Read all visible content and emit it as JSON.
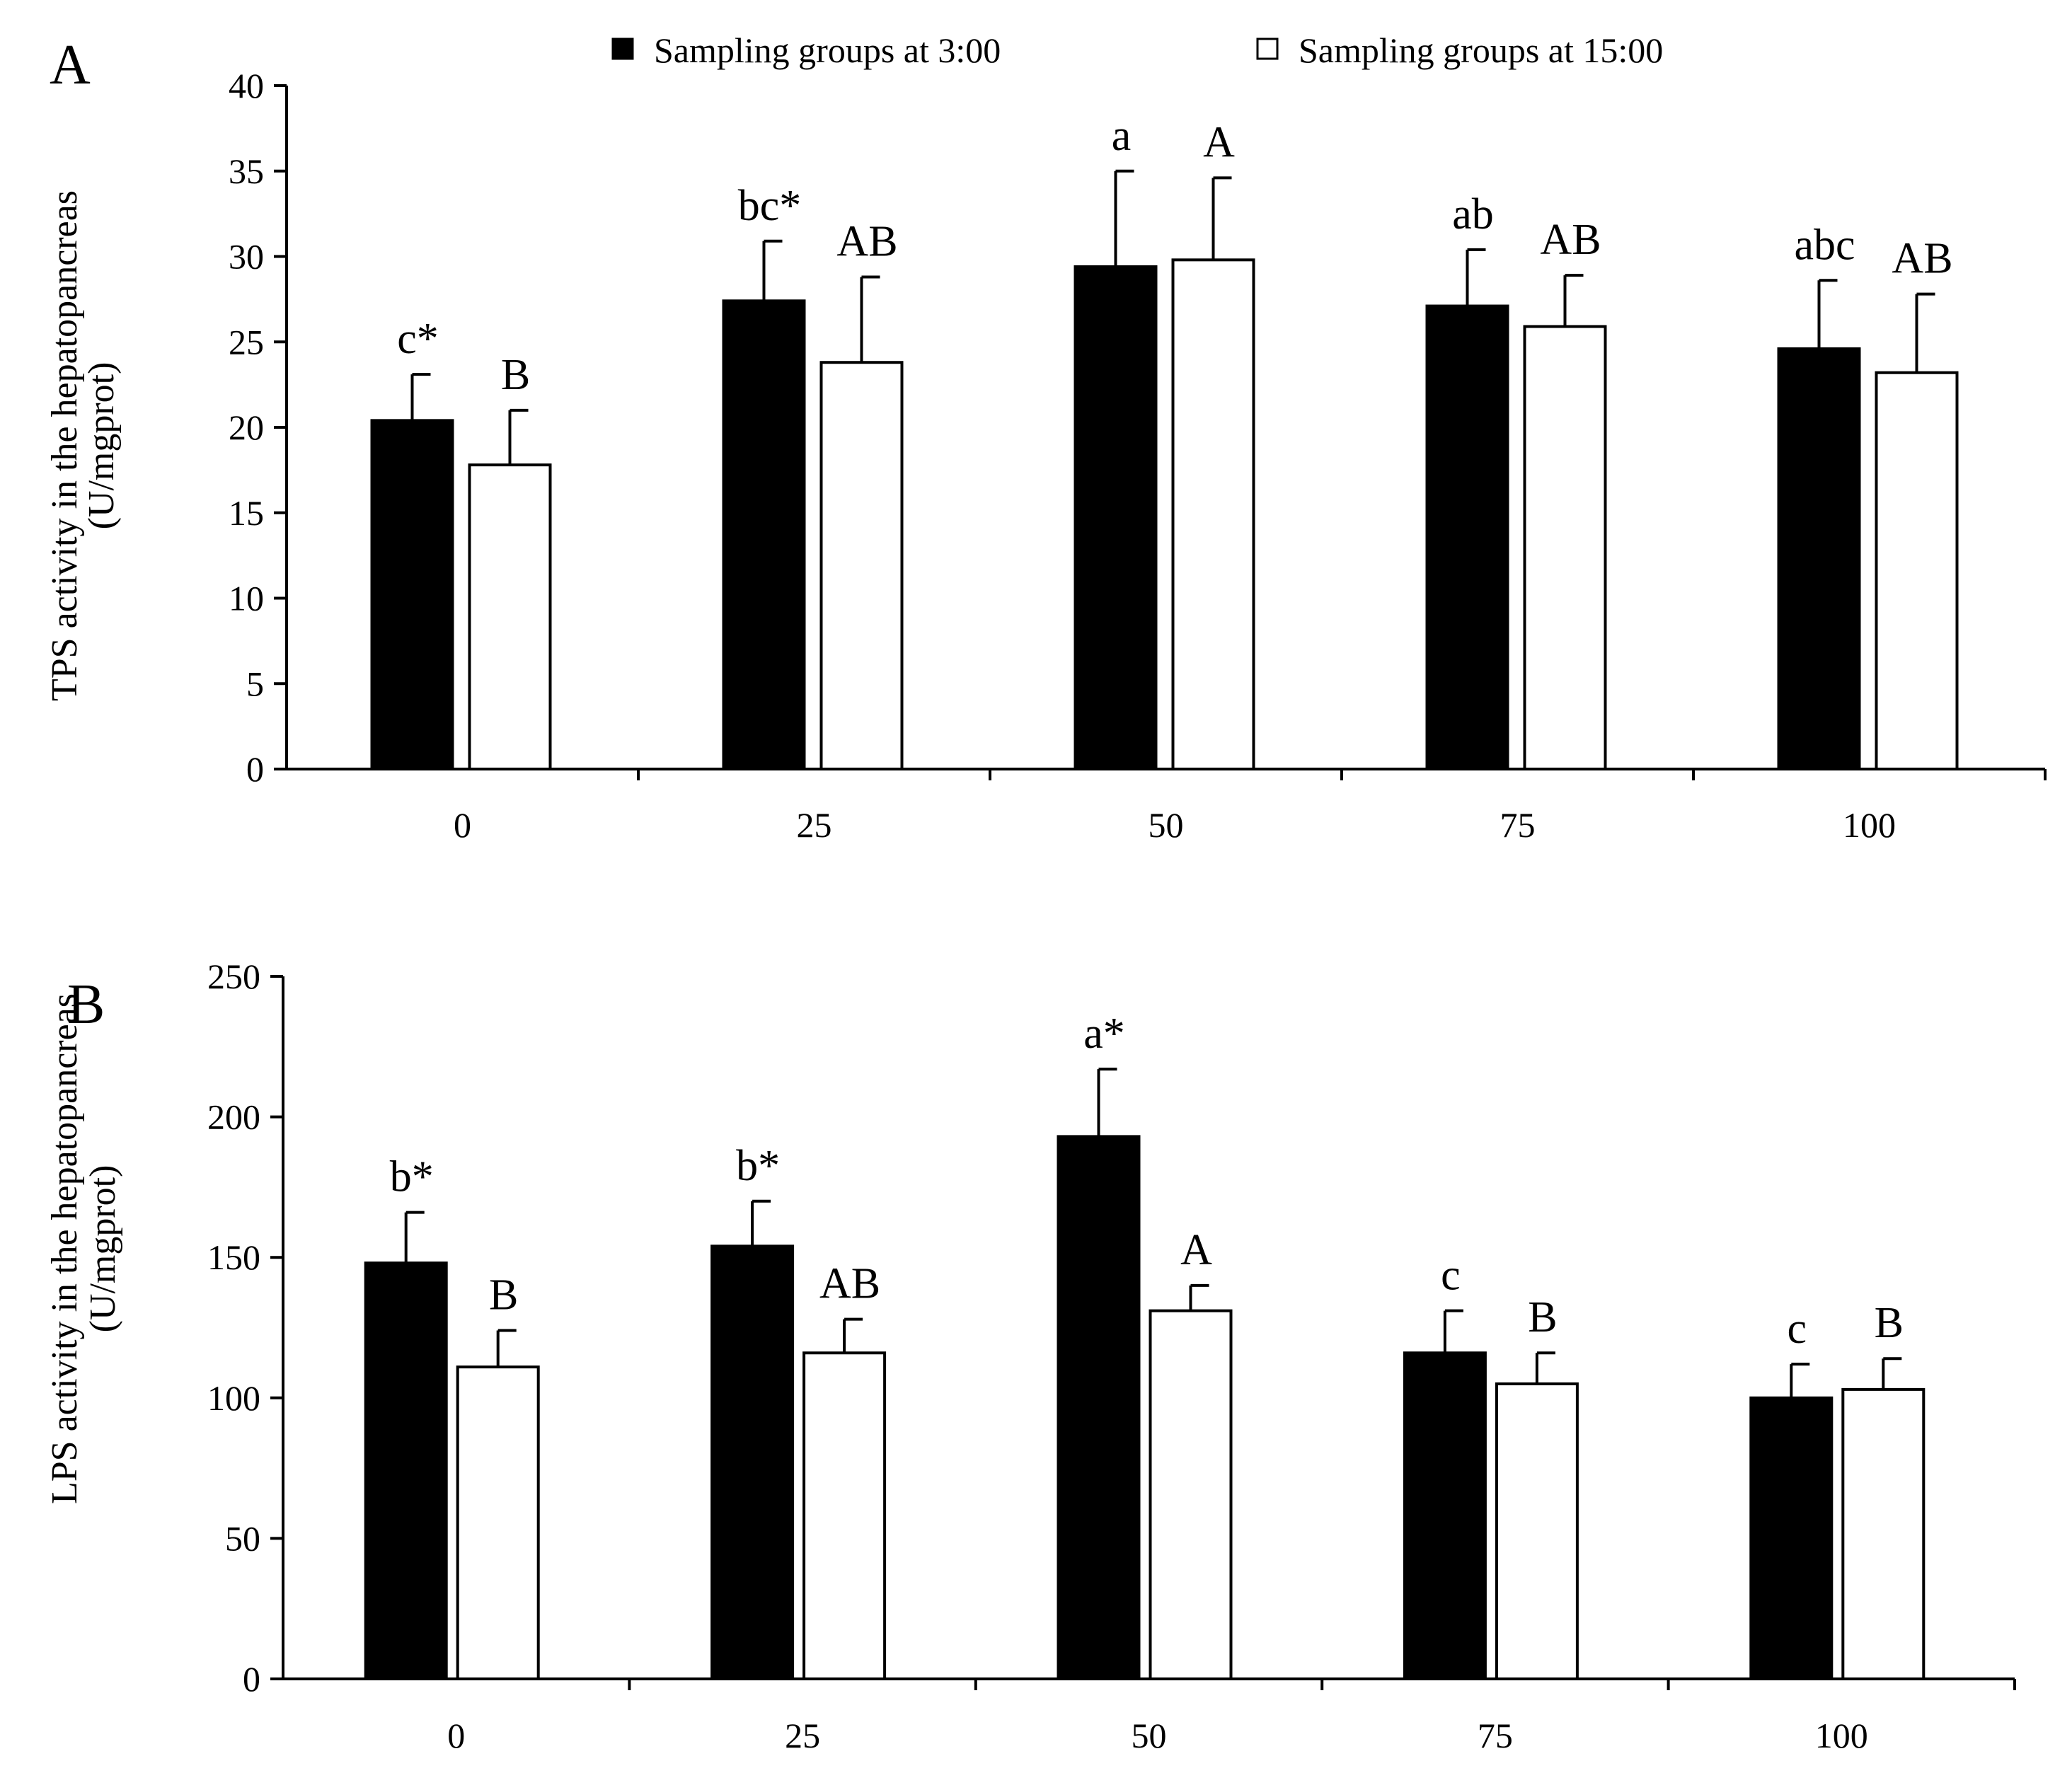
{
  "legend": {
    "series1": "Sampling  groups at 3:00",
    "series2": "Sampling  groups at 15:00"
  },
  "colors": {
    "series1": "#000000",
    "series2": "#ffffff",
    "axis": "#000000"
  },
  "chart_data": [
    {
      "type": "bar",
      "panel": "A",
      "ylabel": [
        "TPS activity in the hepatopancreas",
        "(U/mgprot)"
      ],
      "xlabel": "",
      "ylim": [
        0,
        40
      ],
      "yticks": [
        0,
        5,
        10,
        15,
        20,
        25,
        30,
        35,
        40
      ],
      "categories": [
        "0",
        "25",
        "50",
        "75",
        "100"
      ],
      "series": [
        {
          "name": "Sampling  groups at 3:00",
          "values": [
            20.4,
            27.4,
            29.4,
            27.1,
            24.6
          ],
          "errors": [
            2.7,
            3.5,
            5.6,
            3.3,
            4.0
          ],
          "labels": [
            "c*",
            "bc*",
            "a",
            "ab",
            "abc"
          ]
        },
        {
          "name": "Sampling  groups at 15:00",
          "values": [
            17.8,
            23.8,
            29.8,
            25.9,
            23.2
          ],
          "errors": [
            3.2,
            5.0,
            4.8,
            3.0,
            4.6
          ],
          "labels": [
            "B",
            "AB",
            "A",
            "AB",
            "AB"
          ]
        }
      ]
    },
    {
      "type": "bar",
      "panel": "B",
      "ylabel": [
        "LPS activity in the hepatopancreas",
        "(U/mgprot)"
      ],
      "xlabel": "",
      "ylim": [
        0,
        250
      ],
      "yticks": [
        0,
        50,
        100,
        150,
        200,
        250
      ],
      "categories": [
        "0",
        "25",
        "50",
        "75",
        "100"
      ],
      "series": [
        {
          "name": "Sampling  groups at 3:00",
          "values": [
            148,
            154,
            193,
            116,
            100
          ],
          "errors": [
            18,
            16,
            24,
            15,
            12
          ],
          "labels": [
            "b*",
            "b*",
            "a*",
            "c",
            "c"
          ]
        },
        {
          "name": "Sampling  groups at 15:00",
          "values": [
            111,
            116,
            131,
            105,
            103
          ],
          "errors": [
            13,
            12,
            9,
            11,
            11
          ],
          "labels": [
            "B",
            "AB",
            "A",
            "B",
            "B"
          ]
        }
      ]
    }
  ]
}
